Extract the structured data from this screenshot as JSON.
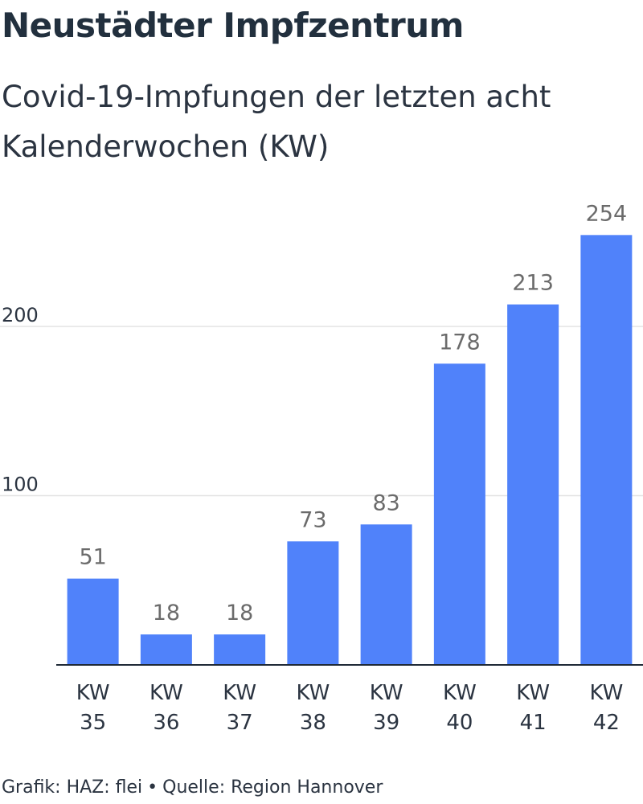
{
  "header": {
    "title": "Neustädter Impfzentrum",
    "subtitle": "Covid-19-Impfungen der letzten acht Kalenderwochen (KW)"
  },
  "footer": {
    "credit": "Grafik: HAZ: flei",
    "separator": "•",
    "source": "Quelle: Region Hannover"
  },
  "chart_data": {
    "type": "bar",
    "title": "Neustädter Impfzentrum",
    "subtitle": "Covid-19-Impfungen der letzten acht Kalenderwochen (KW)",
    "categories": [
      [
        "KW",
        "35"
      ],
      [
        "KW",
        "36"
      ],
      [
        "KW",
        "37"
      ],
      [
        "KW",
        "38"
      ],
      [
        "KW",
        "39"
      ],
      [
        "KW",
        "40"
      ],
      [
        "KW",
        "41"
      ],
      [
        "KW",
        "42"
      ]
    ],
    "values": [
      51,
      18,
      18,
      73,
      83,
      178,
      213,
      254
    ],
    "ylim": [
      0,
      254
    ],
    "yticks": [
      100,
      200
    ],
    "grid": true,
    "data_labels": true,
    "bar_color": "#5082fa",
    "grid_color": "#e3e3e3",
    "axis_color": "#1f2937",
    "label_color": "#6b6b6b",
    "tick_color": "#2b3441"
  }
}
